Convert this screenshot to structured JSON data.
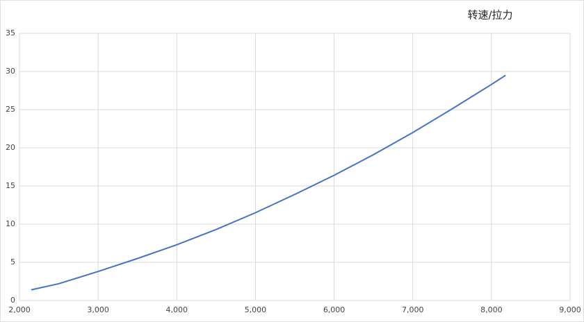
{
  "chart_data": {
    "type": "line",
    "title": "转速/拉力",
    "x": [
      2150,
      2500,
      3000,
      3500,
      4000,
      4500,
      5000,
      5500,
      6000,
      6500,
      7000,
      7500,
      8000,
      8180
    ],
    "series": [
      {
        "color": "#4472c4",
        "values": [
          1.4,
          2.2,
          3.8,
          5.5,
          7.3,
          9.3,
          11.5,
          13.9,
          16.4,
          19.1,
          22,
          25.1,
          28.3,
          29.5
        ]
      }
    ],
    "xlim": [
      2000,
      9000
    ],
    "xticks": [
      {
        "value": 2000,
        "label": "2,000"
      },
      {
        "value": 3000,
        "label": "3,000"
      },
      {
        "value": 4000,
        "label": "4,000"
      },
      {
        "value": 5000,
        "label": "5,000"
      },
      {
        "value": 6000,
        "label": "6,000"
      },
      {
        "value": 7000,
        "label": "7,000"
      },
      {
        "value": 8000,
        "label": "8,000"
      },
      {
        "value": 9000,
        "label": "9,000"
      }
    ],
    "ylim": [
      0,
      35
    ],
    "yticks": [
      0,
      5,
      10,
      15,
      20,
      25,
      30,
      35
    ],
    "grid": true
  }
}
